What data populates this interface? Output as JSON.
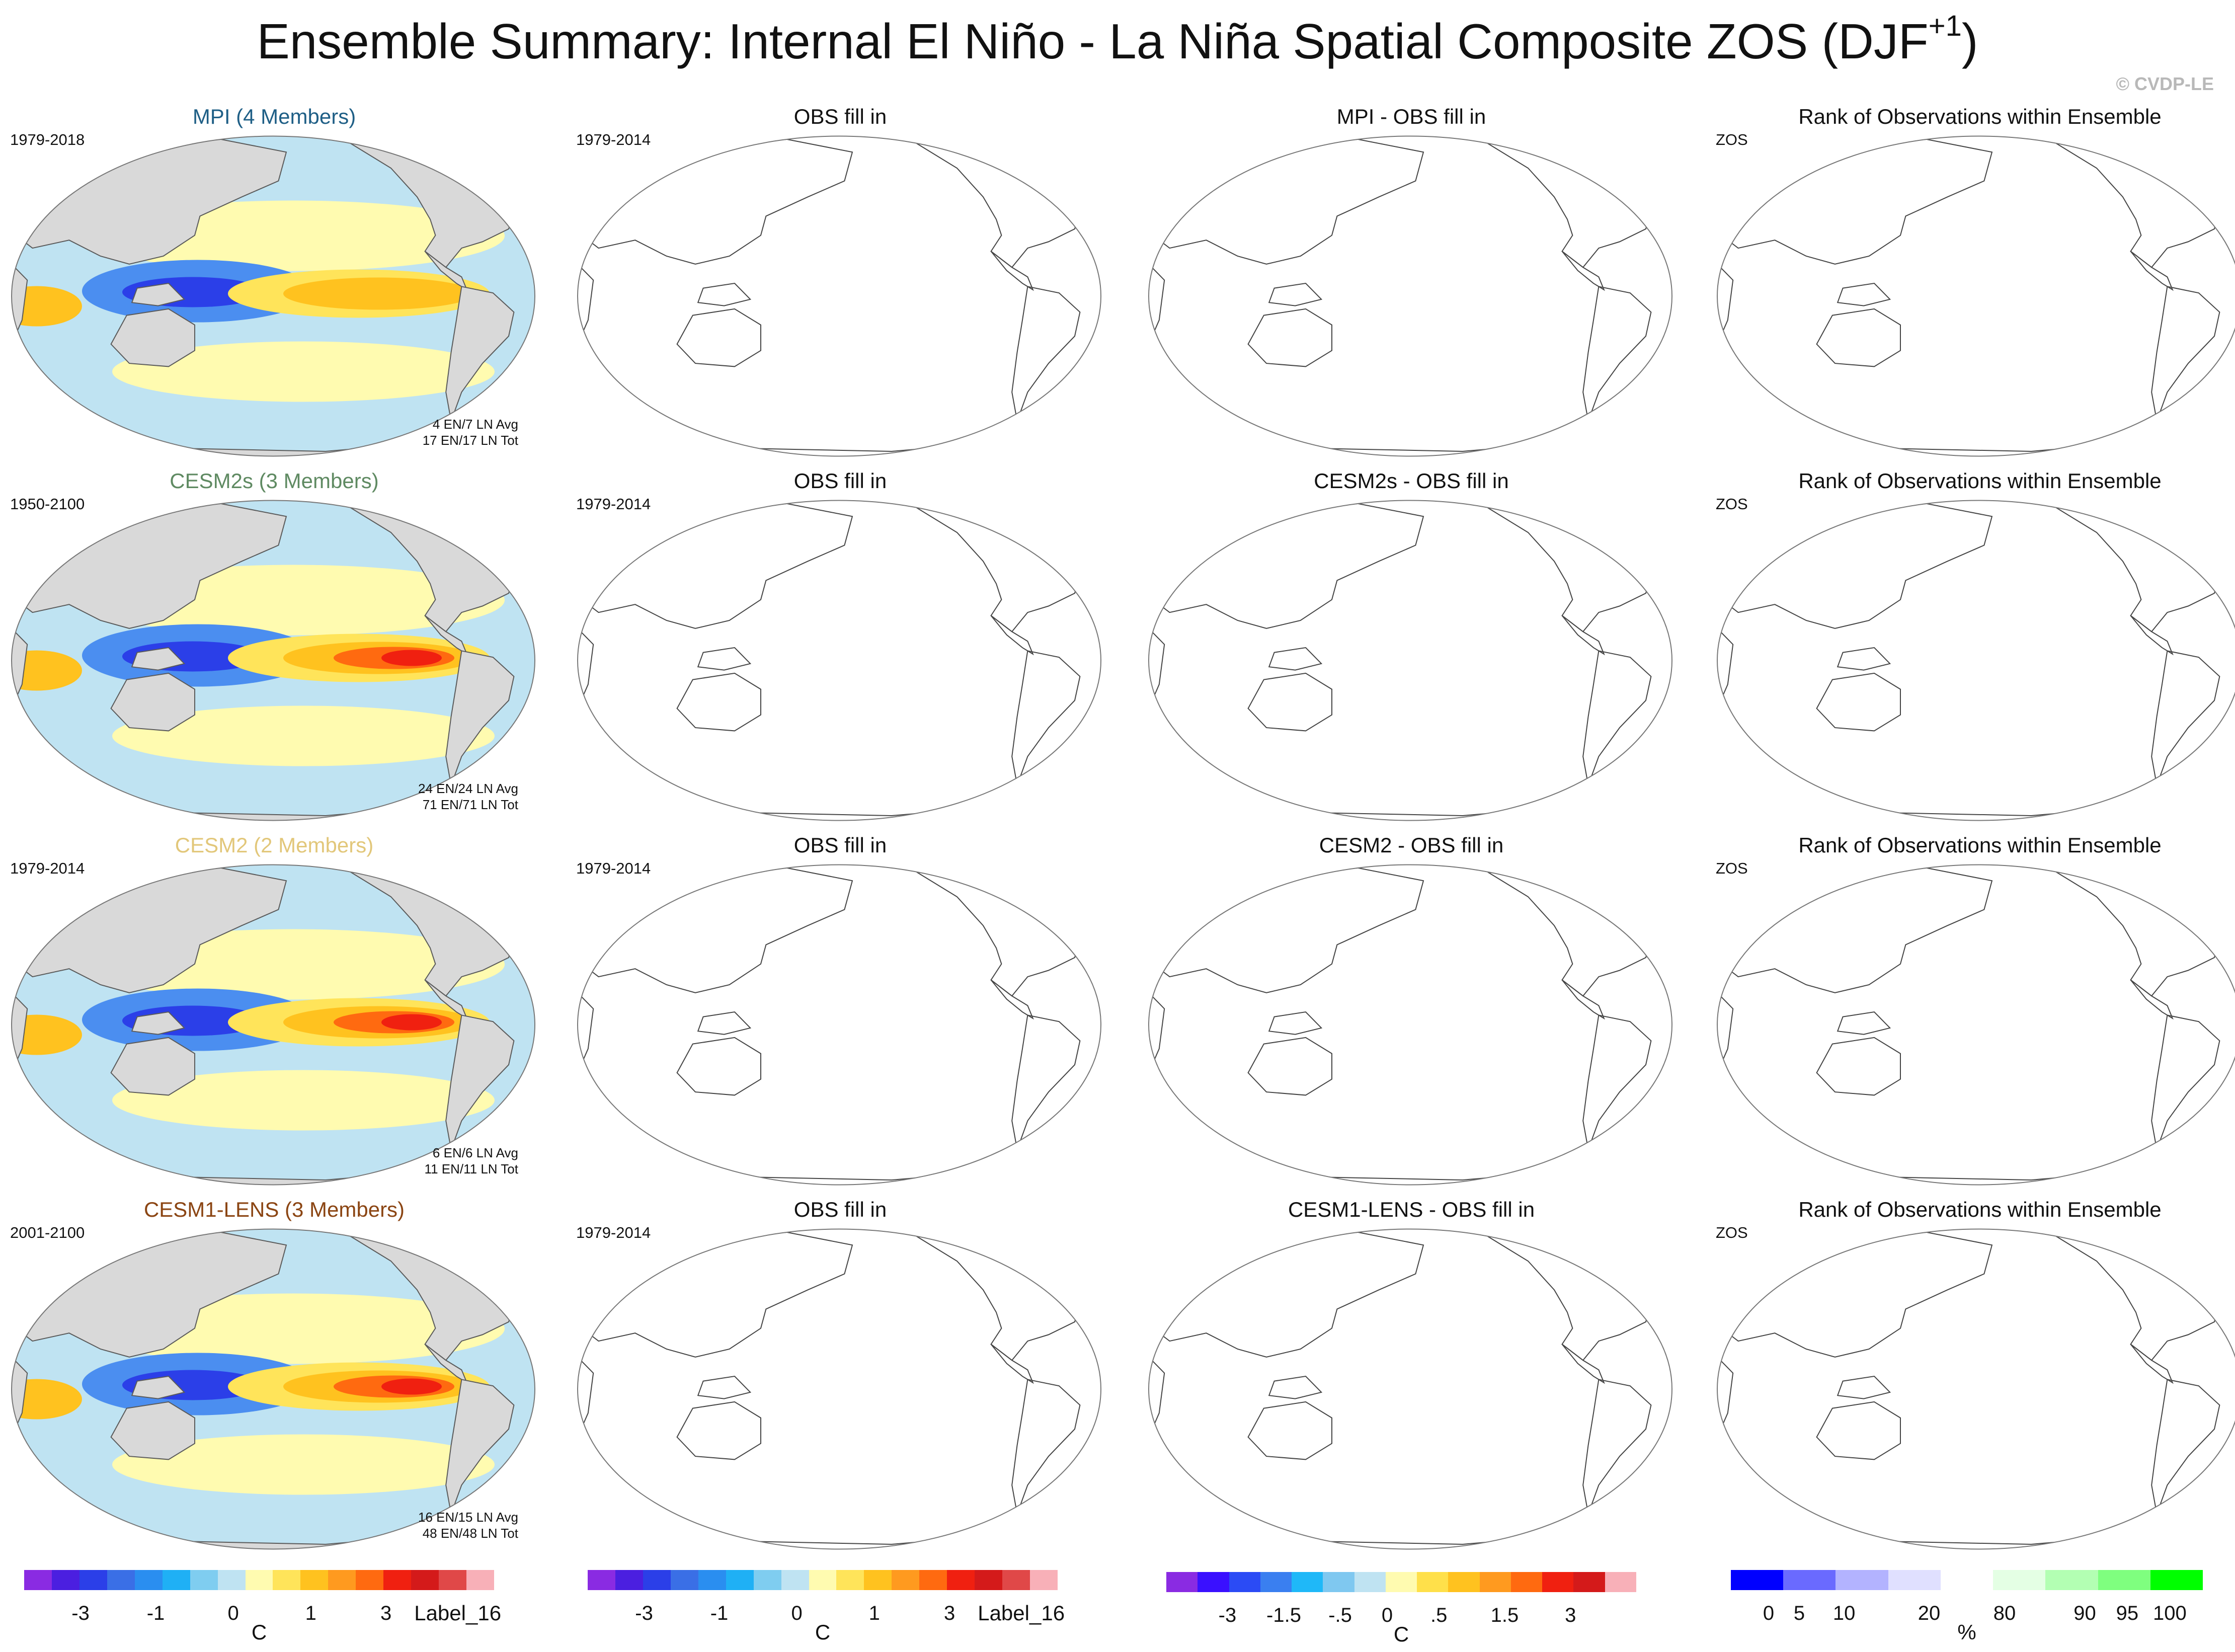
{
  "figure": {
    "title_main": "Ensemble Summary: Internal El Niño - La Niña Spatial Composite ZOS (DJF",
    "title_sup": "+1",
    "title_end": ")",
    "credit": "© CVDP-LE"
  },
  "rows": [
    {
      "model_title": "MPI (4 Members)",
      "model_color": "#1f5f86",
      "period": "1979-2018",
      "avg": "4 EN/7 LN Avg",
      "tot": "17 EN/17 LN Tot",
      "obs_title": "OBS fill in",
      "obs_period": "1979-2014",
      "diff_title": "MPI - OBS fill in",
      "rank_title": "Rank of Observations within Ensemble",
      "rank_var": "ZOS"
    },
    {
      "model_title": "CESM2s (3 Members)",
      "model_color": "#5f8a62",
      "period": "1950-2100",
      "avg": "24 EN/24 LN Avg",
      "tot": "71 EN/71 LN Tot",
      "obs_title": "OBS fill in",
      "obs_period": "1979-2014",
      "diff_title": "CESM2s - OBS fill in",
      "rank_title": "Rank of Observations within Ensemble",
      "rank_var": "ZOS"
    },
    {
      "model_title": "CESM2 (2 Members)",
      "model_color": "#e2c77a",
      "period": "1979-2014",
      "avg": "6 EN/6 LN Avg",
      "tot": "11 EN/11 LN Tot",
      "obs_title": "OBS fill in",
      "obs_period": "1979-2014",
      "diff_title": "CESM2 - OBS fill in",
      "rank_title": "Rank of Observations within Ensemble",
      "rank_var": "ZOS"
    },
    {
      "model_title": "CESM1-LENS (3 Members)",
      "model_color": "#8b4513",
      "period": "2001-2100",
      "avg": "16 EN/15 LN Avg",
      "tot": "48 EN/48 LN Tot",
      "obs_title": "OBS fill in",
      "obs_period": "1979-2014",
      "diff_title": "CESM1-LENS - OBS fill in",
      "rank_title": "Rank of Observations within Ensemble",
      "rank_var": "ZOS"
    }
  ],
  "colorbars": {
    "composite": {
      "colors": [
        "#8a2be2",
        "#4b1fe0",
        "#2b3fe8",
        "#3a6fe6",
        "#2a8ef0",
        "#1fb0f5",
        "#7fcdf0",
        "#bfe3f2",
        "#fffbb0",
        "#ffe45a",
        "#ffc21f",
        "#ff9a1f",
        "#ff6a10",
        "#f02010",
        "#d41a1a",
        "#e04848",
        "#f8b0b8"
      ],
      "ticks": [
        "-3",
        "-1",
        "0",
        "1",
        "3"
      ],
      "extra": "Label_16",
      "unit": "C"
    },
    "difference": {
      "colors": [
        "#8a2be2",
        "#3a10ff",
        "#2b4bf5",
        "#3a7ff0",
        "#1fb8f8",
        "#7fc8f0",
        "#bfe3f2",
        "#fffbb0",
        "#ffe04a",
        "#ffc21f",
        "#ff9a1f",
        "#ff6a10",
        "#f02010",
        "#d41a1a",
        "#f8b0b8"
      ],
      "ticks": [
        "-3",
        "-1.5",
        "-.5",
        "0",
        ".5",
        "1.5",
        "3"
      ],
      "unit": "C"
    },
    "rank": {
      "colors": [
        "#0000ff",
        "#6a6aff",
        "#b3b3ff",
        "#e0e0ff",
        "#ffffff",
        "#e4ffe4",
        "#b3ffb3",
        "#7fff7f",
        "#00ff00"
      ],
      "ticks": [
        "0",
        "5",
        "10",
        "20",
        "80",
        "90",
        "95",
        "100"
      ],
      "unit": "%"
    }
  }
}
